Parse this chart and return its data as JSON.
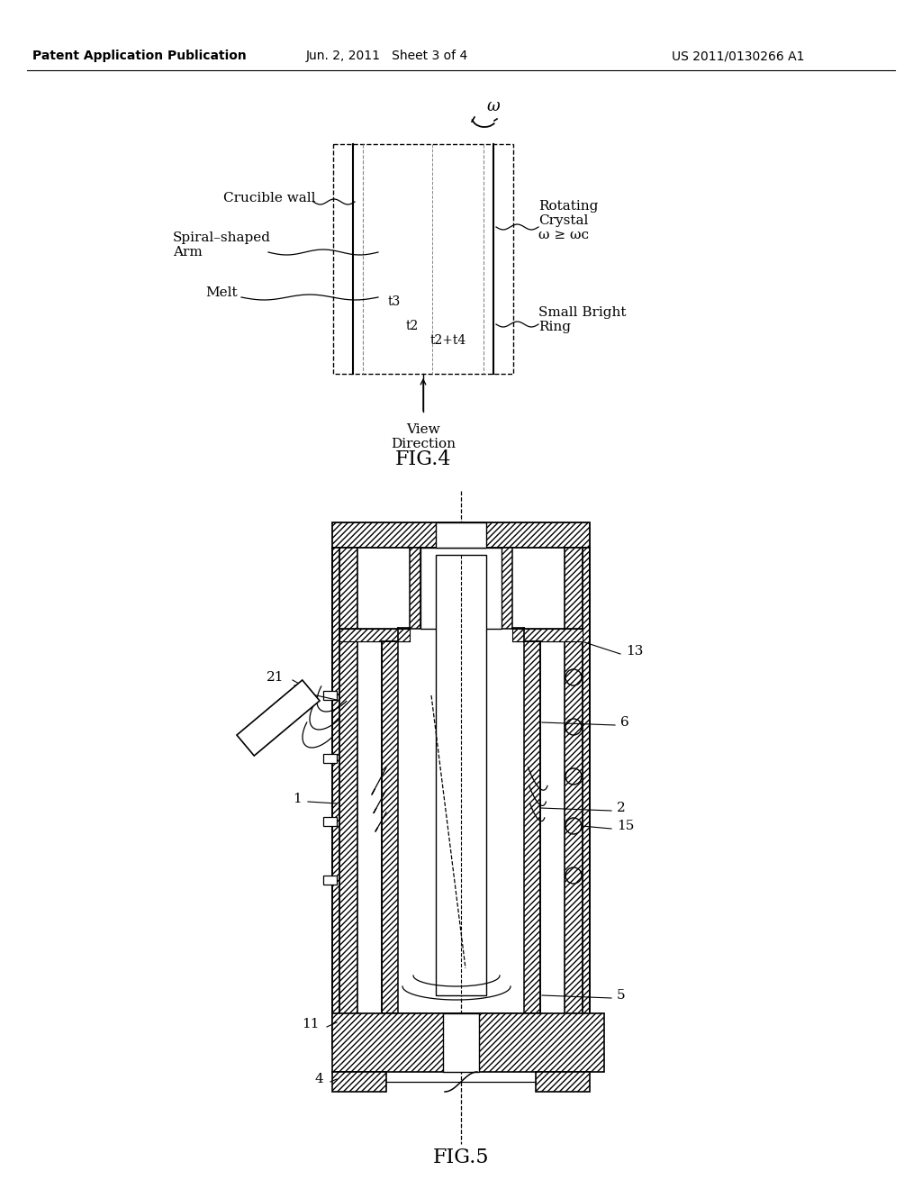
{
  "bg_color": "#ffffff",
  "header_left": "Patent Application Publication",
  "header_center": "Jun. 2, 2011   Sheet 3 of 4",
  "header_right": "US 2011/0130266 A1",
  "fig4_label": "FIG.4",
  "fig5_label": "FIG.5"
}
